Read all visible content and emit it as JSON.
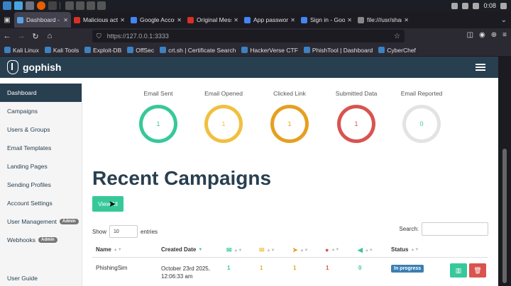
{
  "browser": {
    "tabs": [
      {
        "label": "Dashboard - G",
        "color": "#5aa0e6",
        "active": true
      },
      {
        "label": "Malicious acti",
        "color": "#d93025",
        "active": false
      },
      {
        "label": "Google Accou",
        "color": "#4285f4",
        "active": false
      },
      {
        "label": "Original Mess",
        "color": "#d93025",
        "active": false
      },
      {
        "label": "App passwor",
        "color": "#4285f4",
        "active": false
      },
      {
        "label": "Sign in - Google",
        "color": "#4285f4",
        "active": false
      },
      {
        "label": "file:///usr/share/",
        "color": "#888888",
        "active": false
      }
    ],
    "url": "https://127.0.0.1:3333",
    "clock": "0:08",
    "bookmarks": [
      "Kali Linux",
      "Kali Tools",
      "Exploit-DB",
      "OffSec",
      "crt.sh | Certificate Search",
      "HackerVerse CTF",
      "PhishTool | Dashboard",
      "CyberChef"
    ]
  },
  "app": {
    "brand": "gophish",
    "sidebar": {
      "items": [
        {
          "label": "Dashboard",
          "active": true
        },
        {
          "label": "Campaigns",
          "active": false
        },
        {
          "label": "Users & Groups",
          "active": false
        },
        {
          "label": "Email Templates",
          "active": false
        },
        {
          "label": "Landing Pages",
          "active": false
        },
        {
          "label": "Sending Profiles",
          "active": false
        },
        {
          "label": "Account Settings",
          "active": false
        },
        {
          "label": "User Management",
          "badge": "Admin",
          "active": false
        },
        {
          "label": "Webhooks",
          "badge": "Admin",
          "active": false
        }
      ],
      "bottom": "User Guide"
    },
    "stats": [
      {
        "title": "Email Sent",
        "value": "1",
        "color": "#37c89a"
      },
      {
        "title": "Email Opened",
        "value": "1",
        "color": "#f0c040"
      },
      {
        "title": "Clicked Link",
        "value": "1",
        "color": "#e5a020"
      },
      {
        "title": "Submitted Data",
        "value": "1",
        "color": "#d9534f"
      },
      {
        "title": "Email Reported",
        "value": "0",
        "color": "#37c89a"
      }
    ],
    "recent": {
      "title": "Recent Campaigns",
      "view_all": "View All",
      "show_label": "Show",
      "show_value": "10",
      "entries_label": "entries",
      "search_label": "Search:",
      "columns": {
        "name": "Name",
        "created": "Created Date",
        "status": "Status"
      },
      "row": {
        "name": "PhishingSim",
        "created_line1": "October 23rd 2025,",
        "created_line2": "12:06:33 am",
        "sent": "1",
        "opened": "1",
        "clicked": "1",
        "submitted": "1",
        "reported": "0",
        "status": "In progress"
      }
    }
  }
}
